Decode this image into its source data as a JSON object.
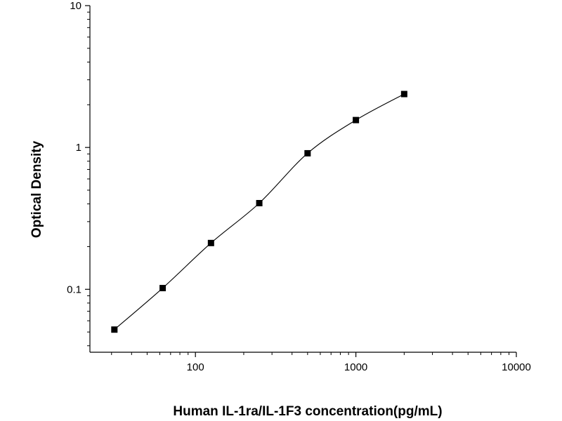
{
  "chart_data": {
    "type": "scatter",
    "title": "",
    "xlabel": "Human IL-1ra/IL-1F3 concentration(pg/mL)",
    "ylabel": "Optical Density",
    "xscale": "log",
    "yscale": "log",
    "xlim": [
      22,
      10000
    ],
    "ylim": [
      0.036,
      10
    ],
    "x_ticks": [
      {
        "value": 100,
        "label": "100"
      },
      {
        "value": 1000,
        "label": "1000"
      },
      {
        "value": 10000,
        "label": "10000"
      }
    ],
    "y_ticks": [
      {
        "value": 0.1,
        "label": "0.1"
      },
      {
        "value": 1,
        "label": "1"
      },
      {
        "value": 10,
        "label": "10"
      }
    ],
    "grid": false,
    "legend": "none",
    "series": [
      {
        "marker": "square",
        "line": "fitted curve",
        "color": "#000000",
        "points": [
          {
            "x": 31.25,
            "y": 0.052
          },
          {
            "x": 62.5,
            "y": 0.102
          },
          {
            "x": 125,
            "y": 0.212
          },
          {
            "x": 250,
            "y": 0.405
          },
          {
            "x": 500,
            "y": 0.91
          },
          {
            "x": 1000,
            "y": 1.56
          },
          {
            "x": 2000,
            "y": 2.38
          }
        ]
      }
    ]
  }
}
